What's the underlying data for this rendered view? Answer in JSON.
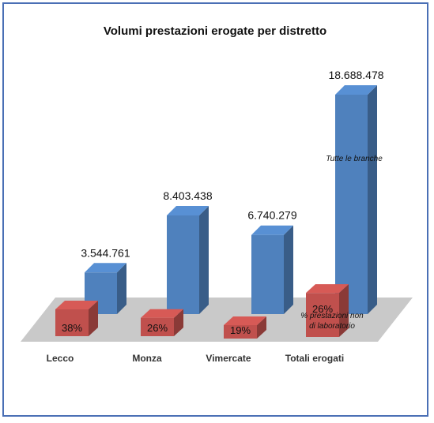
{
  "chart_data": {
    "type": "bar",
    "title": "Volumi prestazioni erogate per distretto",
    "categories": [
      "Lecco",
      "Monza",
      "Vimercate",
      "Totali erogati"
    ],
    "series": [
      {
        "name": "Tutte le branche",
        "values": [
          3544761,
          8403438,
          6740279,
          18688478
        ],
        "value_labels": [
          "3.544.761",
          "8.403.438",
          "6.740.279",
          "18.688.478"
        ],
        "color": "#4f81bd"
      },
      {
        "name": "% prestazioni non di laboratorio",
        "values": [
          38,
          26,
          19,
          26
        ],
        "value_labels": [
          "38%",
          "26%",
          "19%",
          "26%"
        ],
        "color": "#c0504d"
      }
    ],
    "annotations": {
      "blue_series_note": "Tutte le branche",
      "red_series_note_line1": "% prestazioni non",
      "red_series_note_line2": "di laboratorio"
    },
    "style": "3d-columns",
    "grid": false,
    "legend": "none"
  }
}
